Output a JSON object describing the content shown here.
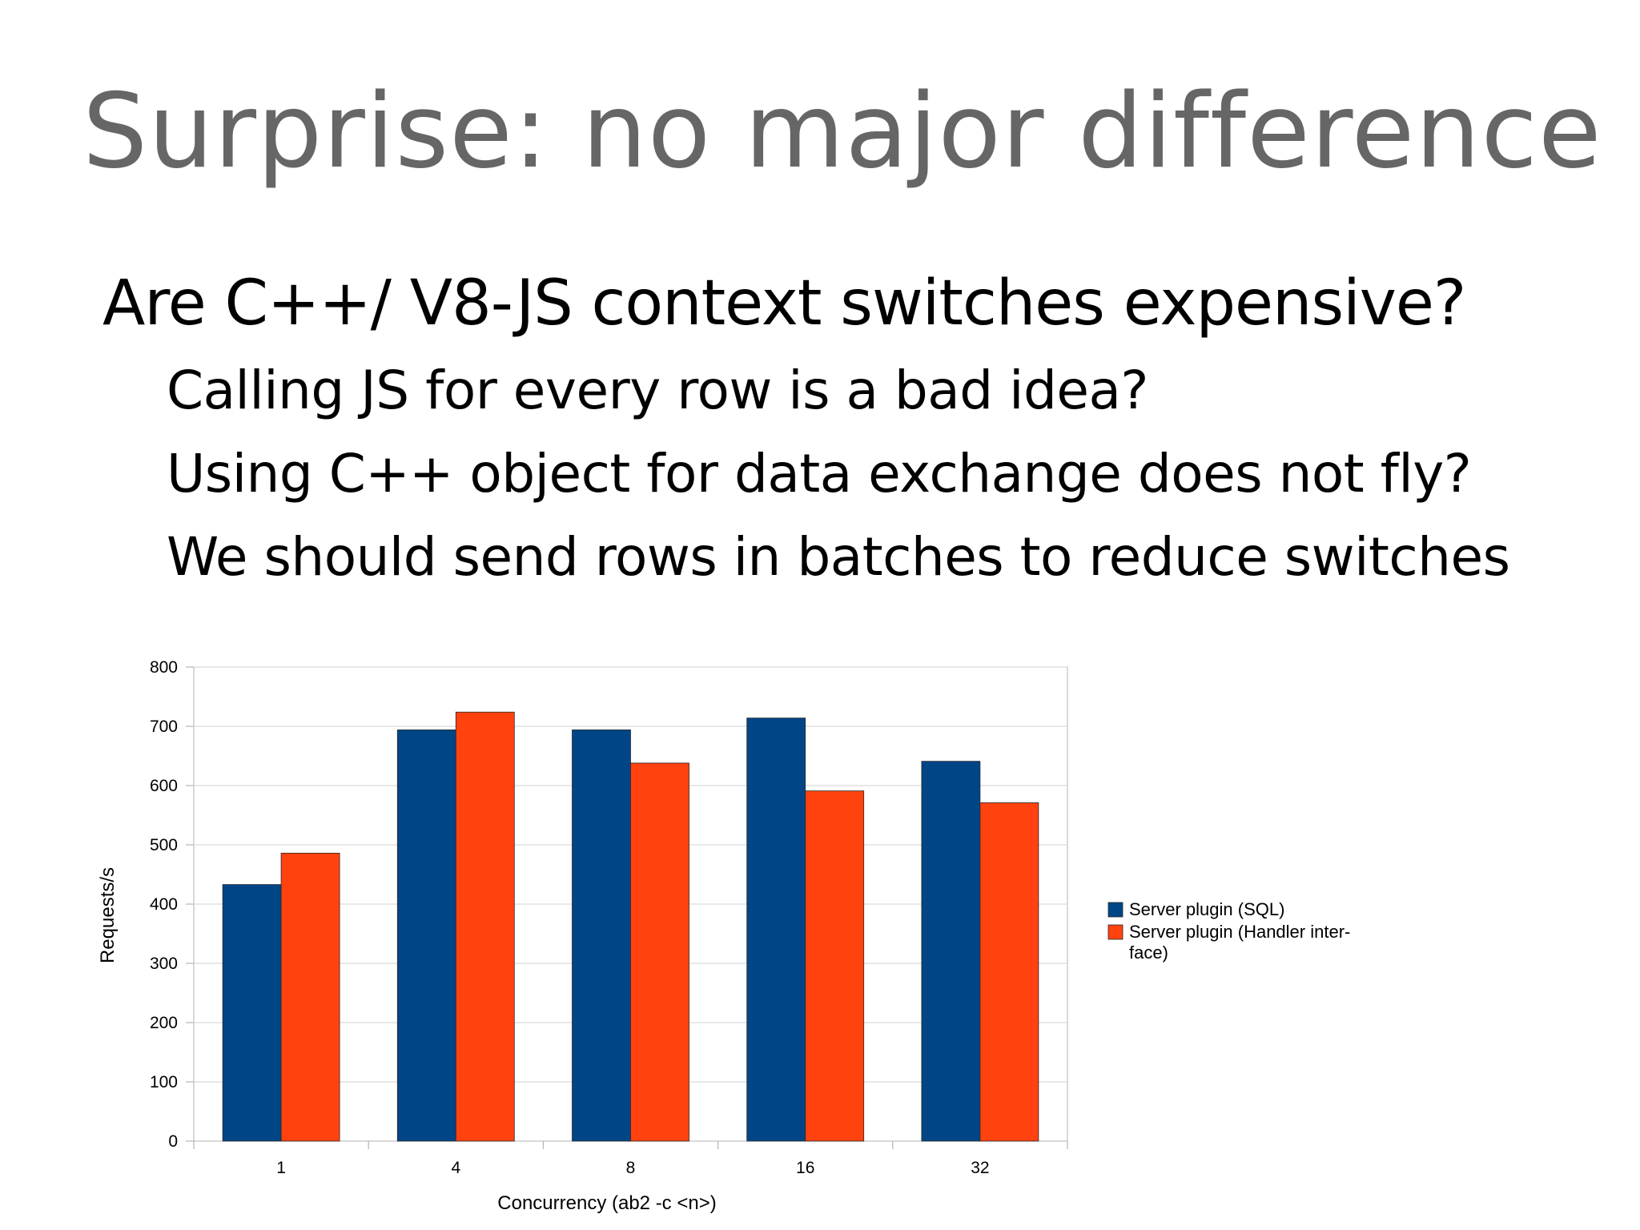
{
  "slide": {
    "title": "Surprise: no major difference",
    "bullet_main": "Are C++/ V8-JS context switches expensive?",
    "sub_bullets": [
      "Calling JS for every row is a bad idea?",
      "Using C++ object for data exchange does not fly?",
      "We should send rows in batches to reduce switches"
    ]
  },
  "chart_data": {
    "type": "bar",
    "categories": [
      "1",
      "4",
      "8",
      "16",
      "32"
    ],
    "series": [
      {
        "name": "Server plugin (SQL)",
        "color": "#004586",
        "values": [
          433,
          694,
          694,
          714,
          641
        ]
      },
      {
        "name": "Server plugin (Handler inter-face)",
        "legend_lines": [
          "Server plugin (Handler inter-",
          "face)"
        ],
        "color": "#ff420e",
        "values": [
          486,
          724,
          638,
          591,
          571
        ]
      }
    ],
    "xlabel": "Concurrency (ab2 -c <n>)",
    "ylabel": "Requests/s",
    "ylim": [
      0,
      800
    ],
    "yticks": [
      0,
      100,
      200,
      300,
      400,
      500,
      600,
      700,
      800
    ],
    "grid": true,
    "legend_position": "right"
  }
}
